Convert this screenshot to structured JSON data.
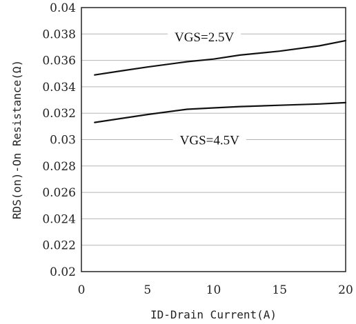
{
  "chart_data": {
    "type": "line",
    "title": "",
    "xlabel": "ID-Drain Current(A)",
    "ylabel": "RDS(on)-On Resistance(Ω)",
    "xlim": [
      0,
      20
    ],
    "ylim": [
      0.02,
      0.04
    ],
    "x_ticks": [
      0,
      5,
      10,
      15,
      20
    ],
    "x_tick_labels": [
      "0",
      "5",
      "10",
      "15",
      "20"
    ],
    "y_ticks": [
      0.02,
      0.022,
      0.024,
      0.026,
      0.028,
      0.03,
      0.032,
      0.034,
      0.036,
      0.038,
      0.04
    ],
    "y_tick_labels": [
      "0.02",
      "0.022",
      "0.024",
      "0.026",
      "0.028",
      "0.03",
      "0.032",
      "0.034",
      "0.036",
      "0.038",
      "0.04"
    ],
    "grid": "horizontal",
    "legend": "none",
    "series": [
      {
        "name": "VGS=2.5V",
        "color": "#111111",
        "x": [
          1,
          3,
          5,
          8,
          10,
          12,
          15,
          18,
          20
        ],
        "y": [
          0.0349,
          0.0352,
          0.0355,
          0.0359,
          0.0361,
          0.0364,
          0.0367,
          0.0371,
          0.0375
        ]
      },
      {
        "name": "VGS=4.5V",
        "color": "#111111",
        "x": [
          1,
          3,
          5,
          8,
          10,
          12,
          15,
          18,
          20
        ],
        "y": [
          0.0313,
          0.0316,
          0.0319,
          0.0323,
          0.0324,
          0.0325,
          0.0326,
          0.0327,
          0.0328
        ]
      }
    ],
    "annotations": [
      {
        "text": "VGS=2.5V",
        "x": 9.3,
        "y": 0.0378
      },
      {
        "text": "VGS=4.5V",
        "x": 9.7,
        "y": 0.03
      }
    ]
  }
}
